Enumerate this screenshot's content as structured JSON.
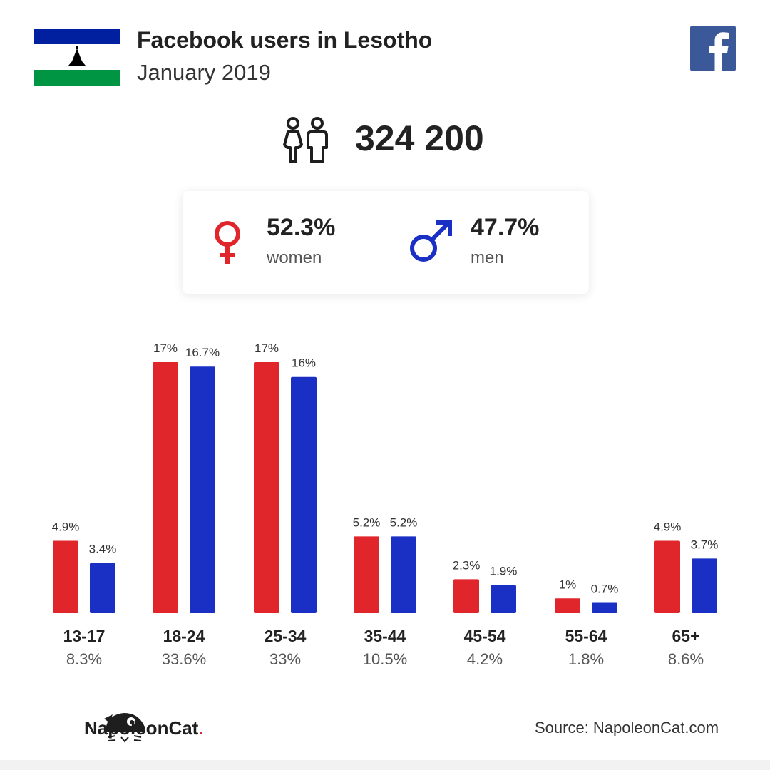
{
  "header": {
    "title": "Facebook users in Lesotho",
    "subtitle": "January 2019"
  },
  "icons": {
    "flag": "lesotho-flag",
    "social": "facebook-icon",
    "people": "people-icon",
    "female": "female-symbol-icon",
    "male": "male-symbol-icon",
    "brand": "napoleoncat-logo-icon"
  },
  "colors": {
    "women": "#e0252b",
    "men": "#1a2fc4",
    "facebook": "#3b5998",
    "flag_blue": "#00209f",
    "flag_green": "#009543"
  },
  "summary": {
    "total_users": "324 200",
    "women_pct": "52.3%",
    "women_label": "women",
    "men_pct": "47.7%",
    "men_label": "men"
  },
  "chart_data": {
    "type": "bar",
    "categories": [
      "13-17",
      "18-24",
      "25-34",
      "35-44",
      "45-54",
      "55-64",
      "65+"
    ],
    "category_totals": [
      "8.3%",
      "33.6%",
      "33%",
      "10.5%",
      "4.2%",
      "1.8%",
      "8.6%"
    ],
    "series": [
      {
        "values": [
          4.9,
          17,
          17,
          5.2,
          2.3,
          1,
          4.9
        ],
        "labels": [
          "4.9%",
          "17%",
          "17%",
          "5.2%",
          "2.3%",
          "1%",
          "4.9%"
        ],
        "color": "#e0252b"
      },
      {
        "values": [
          3.4,
          16.7,
          16,
          5.2,
          1.9,
          0.7,
          3.7
        ],
        "labels": [
          "3.4%",
          "16.7%",
          "16%",
          "5.2%",
          "1.9%",
          "0.7%",
          "3.7%"
        ],
        "color": "#1a2fc4"
      }
    ],
    "ylim": [
      0,
      17
    ]
  },
  "footer": {
    "brand_name": "NapoleonCat",
    "brand_dot": ".",
    "source": "Source: NapoleonCat.com"
  }
}
